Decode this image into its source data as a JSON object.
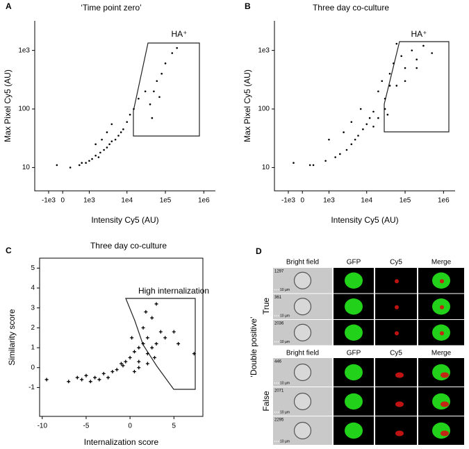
{
  "chart_data": [
    {
      "type": "scatter",
      "label": "A",
      "title": "‘Time point zero’",
      "xlabel": "Intensity Cy5 (AU)",
      "ylabel": "Max Pixel Cy5 (AU)",
      "annotation": "HA⁺",
      "xscale": "logicle",
      "yscale": "log",
      "color": "#000000",
      "xlim": [
        -5000,
        2000000
      ],
      "ylim": [
        4,
        3200
      ],
      "xticks": [
        {
          "value": -1000,
          "label": "-1e3"
        },
        0,
        {
          "value": 1000,
          "label": "1e3"
        },
        {
          "value": 10000,
          "label": "1e4"
        },
        {
          "value": 100000,
          "label": "1e5"
        },
        {
          "value": 1000000,
          "label": "1e6"
        }
      ],
      "yticks": [
        10,
        100,
        {
          "value": 1000,
          "label": "1e3"
        }
      ],
      "x": [
        500,
        800,
        1000,
        1200,
        1500,
        1800,
        2000,
        2500,
        3000,
        3500,
        4000,
        5000,
        6000,
        7000,
        8000,
        10000,
        1500,
        2200,
        3000,
        4000,
        -300,
        200,
        600,
        12000,
        15000,
        20000,
        30000,
        40000,
        50000,
        60000,
        80000,
        100000,
        150000,
        200000,
        45000,
        70000
      ],
      "values": [
        11,
        12,
        13,
        14,
        16,
        15,
        18,
        20,
        22,
        25,
        28,
        30,
        35,
        40,
        45,
        60,
        25,
        30,
        40,
        55,
        11,
        10,
        12,
        80,
        100,
        150,
        200,
        120,
        200,
        300,
        400,
        600,
        900,
        1100,
        70,
        160
      ]
    },
    {
      "type": "scatter",
      "label": "B",
      "title": "Three day co-culture",
      "xlabel": "Intensity Cy5 (AU)",
      "ylabel": "Max Pixel Cy5 (AU)",
      "annotation": "HA⁺",
      "xscale": "logicle",
      "yscale": "log",
      "color": "#000000",
      "xlim": [
        -5000,
        2000000
      ],
      "ylim": [
        4,
        3200
      ],
      "xticks": [
        {
          "value": -1000,
          "label": "-1e3"
        },
        0,
        {
          "value": 1000,
          "label": "1e3"
        },
        {
          "value": 10000,
          "label": "1e4"
        },
        {
          "value": 100000,
          "label": "1e5"
        },
        {
          "value": 1000000,
          "label": "1e6"
        }
      ],
      "yticks": [
        10,
        100,
        {
          "value": 1000,
          "label": "1e3"
        }
      ],
      "x": [
        300,
        800,
        1500,
        2000,
        3000,
        4000,
        5000,
        6000,
        8000,
        10000,
        12000,
        15000,
        2500,
        4000,
        7000,
        1000,
        -500,
        200,
        20000,
        25000,
        30000,
        40000,
        50000,
        60000,
        80000,
        100000,
        150000,
        200000,
        300000,
        500000,
        30000,
        40000,
        60000,
        100000,
        200000,
        20000,
        15000,
        35000
      ],
      "values": [
        11,
        13,
        15,
        17,
        20,
        25,
        30,
        35,
        45,
        55,
        70,
        90,
        40,
        60,
        100,
        30,
        12,
        11,
        200,
        300,
        150,
        400,
        600,
        250,
        800,
        500,
        1000,
        700,
        1200,
        900,
        100,
        250,
        1300,
        300,
        500,
        70,
        50,
        80
      ]
    },
    {
      "type": "scatter",
      "label": "C",
      "title": "Three day co-culture",
      "xlabel": "Internalization score",
      "ylabel": "Similarity score",
      "annotation": "High internalization",
      "xscale": "linear",
      "yscale": "linear",
      "color": "#000000",
      "xlim": [
        -10.3,
        8.3
      ],
      "ylim": [
        -2.45,
        5.5
      ],
      "xticks": [
        -10,
        -5,
        0,
        5
      ],
      "yticks": [
        -1,
        0,
        1,
        2,
        3,
        4,
        5
      ],
      "x": [
        -9.5,
        -7,
        -6,
        -5.5,
        -5,
        -4.5,
        -4,
        -3.5,
        -3,
        -2.5,
        -2,
        -1.5,
        -1,
        -0.5,
        0,
        0.5,
        1,
        1,
        1.5,
        1.5,
        2,
        2,
        2.5,
        2.5,
        3,
        3,
        3.5,
        4,
        0.5,
        1,
        2,
        2.8,
        5,
        5.5,
        7.3,
        -0.8,
        0.2,
        1.8
      ],
      "values": [
        -0.6,
        -0.7,
        -0.5,
        -0.6,
        -0.4,
        -0.7,
        -0.5,
        -0.6,
        -0.3,
        -0.5,
        -0.2,
        -0.1,
        0.2,
        0.3,
        0.5,
        0.8,
        1,
        0.3,
        1.2,
        2,
        1.5,
        0.7,
        2.5,
        1,
        3.2,
        1.2,
        1.8,
        1.5,
        -0.2,
        0,
        0.2,
        0.5,
        1.8,
        1.2,
        0.7,
        0.1,
        1.5,
        2.8
      ]
    }
  ],
  "panel_d": {
    "label": "D",
    "y_label": "‘Double positive’",
    "scale_bar": "10 µm",
    "groups": [
      {
        "label": "True",
        "headers": [
          "Bright field",
          "GFP",
          "Cy5",
          "Merge"
        ],
        "cell_ids": [
          "1297",
          "361",
          "2036"
        ]
      },
      {
        "label": "False",
        "headers": [
          "Bright field",
          "GFP",
          "Cy5",
          "Merge"
        ],
        "cell_ids": [
          "446",
          "2071",
          "2295"
        ]
      }
    ]
  }
}
